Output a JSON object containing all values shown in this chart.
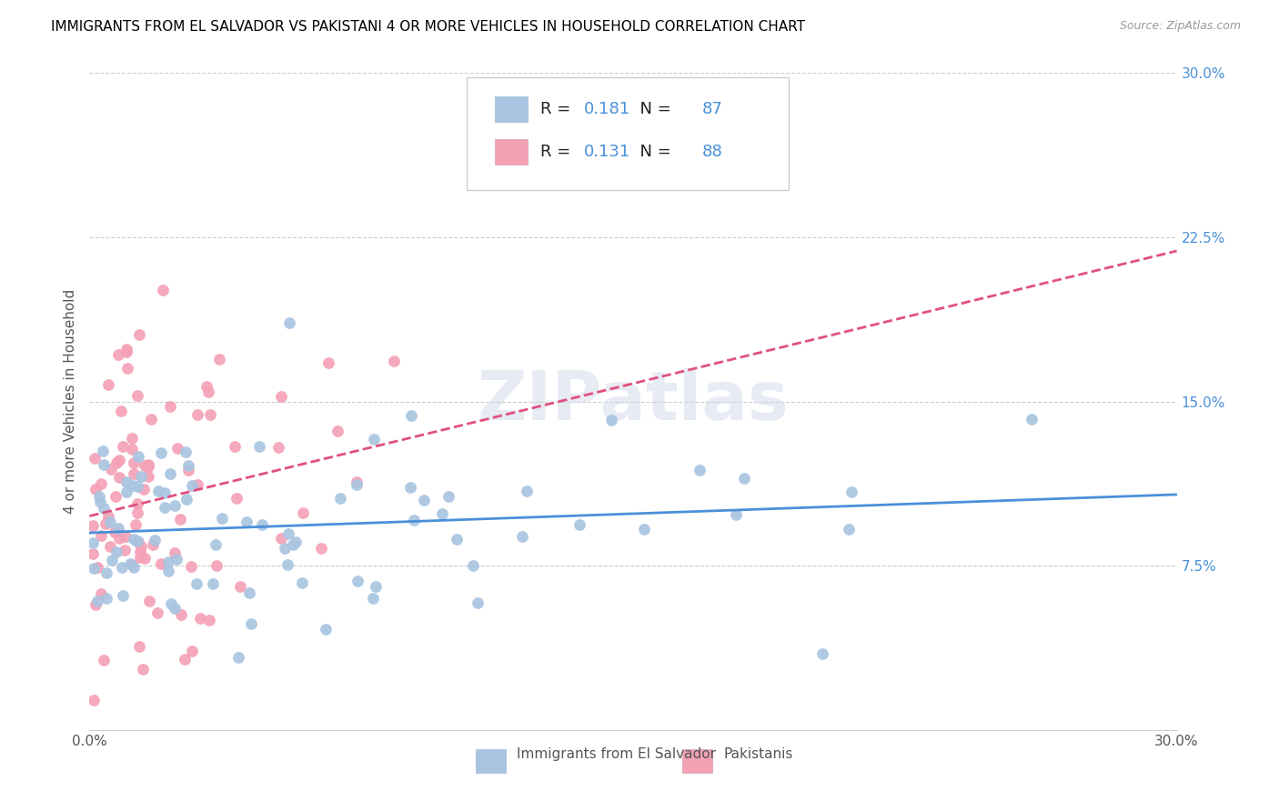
{
  "title": "IMMIGRANTS FROM EL SALVADOR VS PAKISTANI 4 OR MORE VEHICLES IN HOUSEHOLD CORRELATION CHART",
  "source": "Source: ZipAtlas.com",
  "ylabel": "4 or more Vehicles in Household",
  "x_min": 0.0,
  "x_max": 0.3,
  "y_min": 0.0,
  "y_max": 0.3,
  "x_ticks": [
    0.0,
    0.075,
    0.15,
    0.225,
    0.3
  ],
  "x_tick_labels": [
    "0.0%",
    "",
    "",
    "",
    "30.0%"
  ],
  "y_ticks": [
    0.0,
    0.075,
    0.15,
    0.225,
    0.3
  ],
  "y_tick_labels_right": [
    "",
    "7.5%",
    "15.0%",
    "22.5%",
    "30.0%"
  ],
  "color_blue": "#a8c4e0",
  "color_pink": "#f4a0b5",
  "line_blue": "#4a90d9",
  "line_pink": "#e05080",
  "value_color": "#4a90d9",
  "r_blue": "0.181",
  "n_blue": "87",
  "r_pink": "0.131",
  "n_pink": "88",
  "legend_label_blue": "Immigrants from El Salvador",
  "legend_label_pink": "Pakistanis",
  "watermark": "ZIPatlas",
  "grid_color": "#cccccc",
  "spine_color": "#cccccc",
  "title_fontsize": 11,
  "source_fontsize": 9,
  "tick_fontsize": 11,
  "legend_fontsize": 13
}
